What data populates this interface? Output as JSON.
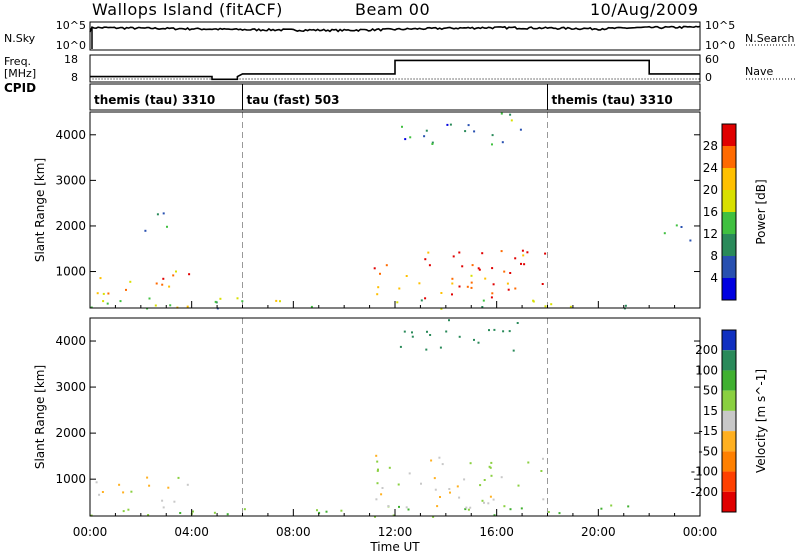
{
  "header": {
    "left": "Wallops Island (fitACF)",
    "center": "Beam 00",
    "right": "10/Aug/2009"
  },
  "aux": {
    "nsky_label": "N.Sky",
    "nsearch_label": "N.Search",
    "freq_label_1": "Freq.",
    "freq_label_2": "[MHz]",
    "nave_label": "Nave",
    "cpid_label": "CPID",
    "sky_ticks": [
      "10^5",
      "10^0"
    ],
    "sky_ticks_right": [
      "10^5",
      "10^0"
    ],
    "freq_ticks": [
      "18",
      "8"
    ],
    "nave_ticks": [
      "60",
      "0"
    ]
  },
  "cpid_segments": [
    {
      "label": "themis (tau) 3310",
      "start_h": 0,
      "end_h": 6
    },
    {
      "label": "tau (fast) 503",
      "start_h": 6,
      "end_h": 18
    },
    {
      "label": "themis (tau) 3310",
      "start_h": 18,
      "end_h": 24
    }
  ],
  "axes": {
    "x_ticks": [
      "00:00",
      "04:00",
      "08:00",
      "12:00",
      "16:00",
      "20:00",
      "00:00"
    ],
    "xlabel": "Time UT",
    "ylabel": "Slant Range [km]",
    "y_ticks": [
      "1000",
      "2000",
      "3000",
      "4000"
    ]
  },
  "colorbars": {
    "power": {
      "label": "Power [dB]",
      "ticks": [
        "28",
        "24",
        "20",
        "16",
        "12",
        "8",
        "4"
      ],
      "colors": [
        "#e00000",
        "#ff6a00",
        "#ffc000",
        "#d8e000",
        "#40c040",
        "#2a8a5a",
        "#2850b0",
        "#0000e0"
      ]
    },
    "velocity": {
      "label": "Velocity [m s^-1]",
      "ticks": [
        "200",
        "100",
        "50",
        "15",
        "-15",
        "-50",
        "-100",
        "-200"
      ],
      "colors": [
        "#1030c0",
        "#2a8a5a",
        "#40b030",
        "#8ad040",
        "#c8c8c8",
        "#ffb020",
        "#ff8000",
        "#ff4000",
        "#e00000"
      ]
    }
  },
  "chart_data": [
    {
      "type": "line",
      "title": "N.Sky",
      "x_range_hours": [
        0,
        24
      ],
      "y_scale": "log",
      "ylim": [
        1,
        100000
      ],
      "series": [
        {
          "name": "N.Sky",
          "x": [
            0,
            0.1,
            2,
            6,
            10,
            12,
            16,
            20,
            22,
            24
          ],
          "y": [
            5000,
            20000,
            15000,
            8000,
            6000,
            9000,
            20000,
            12000,
            20000,
            25000
          ]
        }
      ]
    },
    {
      "type": "line",
      "title": "Freq. [MHz]",
      "x_range_hours": [
        0,
        24
      ],
      "ylim": [
        8,
        18
      ],
      "series": [
        {
          "name": "Freq.",
          "x": [
            0,
            4.8,
            4.8,
            5.8,
            5.8,
            6,
            12,
            12,
            22,
            22,
            24
          ],
          "y": [
            10,
            10,
            9,
            9,
            10,
            11,
            11,
            16,
            16,
            11,
            11
          ]
        }
      ]
    },
    {
      "type": "heatmap",
      "title": "Power [dB]",
      "x_range_hours": [
        0,
        24
      ],
      "ylim": [
        200,
        4500
      ],
      "zlim": [
        0,
        30
      ],
      "features": [
        {
          "region": "E-region band",
          "t": [
            0,
            22
          ],
          "range_km": [
            200,
            450
          ],
          "value_db": 12
        },
        {
          "region": "early backscatter",
          "t": [
            0,
            4
          ],
          "range_km": [
            500,
            1100
          ],
          "value_db": 22
        },
        {
          "region": "patch",
          "t": [
            1.5,
            3
          ],
          "range_km": [
            1900,
            2400
          ],
          "value_db": 10
        },
        {
          "region": "main echo",
          "t": [
            11,
            18
          ],
          "range_km": [
            400,
            1600
          ],
          "value_db": 24
        },
        {
          "region": "high range",
          "t": [
            12,
            17
          ],
          "range_km": [
            3800,
            4500
          ],
          "value_db": 8
        },
        {
          "region": "late echo",
          "t": [
            22,
            24
          ],
          "range_km": [
            1700,
            2100
          ],
          "value_db": 8
        }
      ]
    },
    {
      "type": "heatmap",
      "title": "Velocity [m s^-1]",
      "x_range_hours": [
        0,
        24
      ],
      "ylim": [
        200,
        4500
      ],
      "zlim": [
        -200,
        200
      ],
      "features": [
        {
          "region": "low band",
          "t": [
            0,
            22
          ],
          "range_km": [
            200,
            450
          ],
          "value_ms": 40
        },
        {
          "region": "early slow",
          "t": [
            0,
            4
          ],
          "range_km": [
            500,
            1100
          ],
          "value_ms": 0
        },
        {
          "region": "main echo",
          "t": [
            11,
            18
          ],
          "range_km": [
            400,
            1600
          ],
          "value_ms": 5
        },
        {
          "region": "high range",
          "t": [
            12,
            17
          ],
          "range_km": [
            3800,
            4500
          ],
          "value_ms": 150
        }
      ]
    }
  ]
}
